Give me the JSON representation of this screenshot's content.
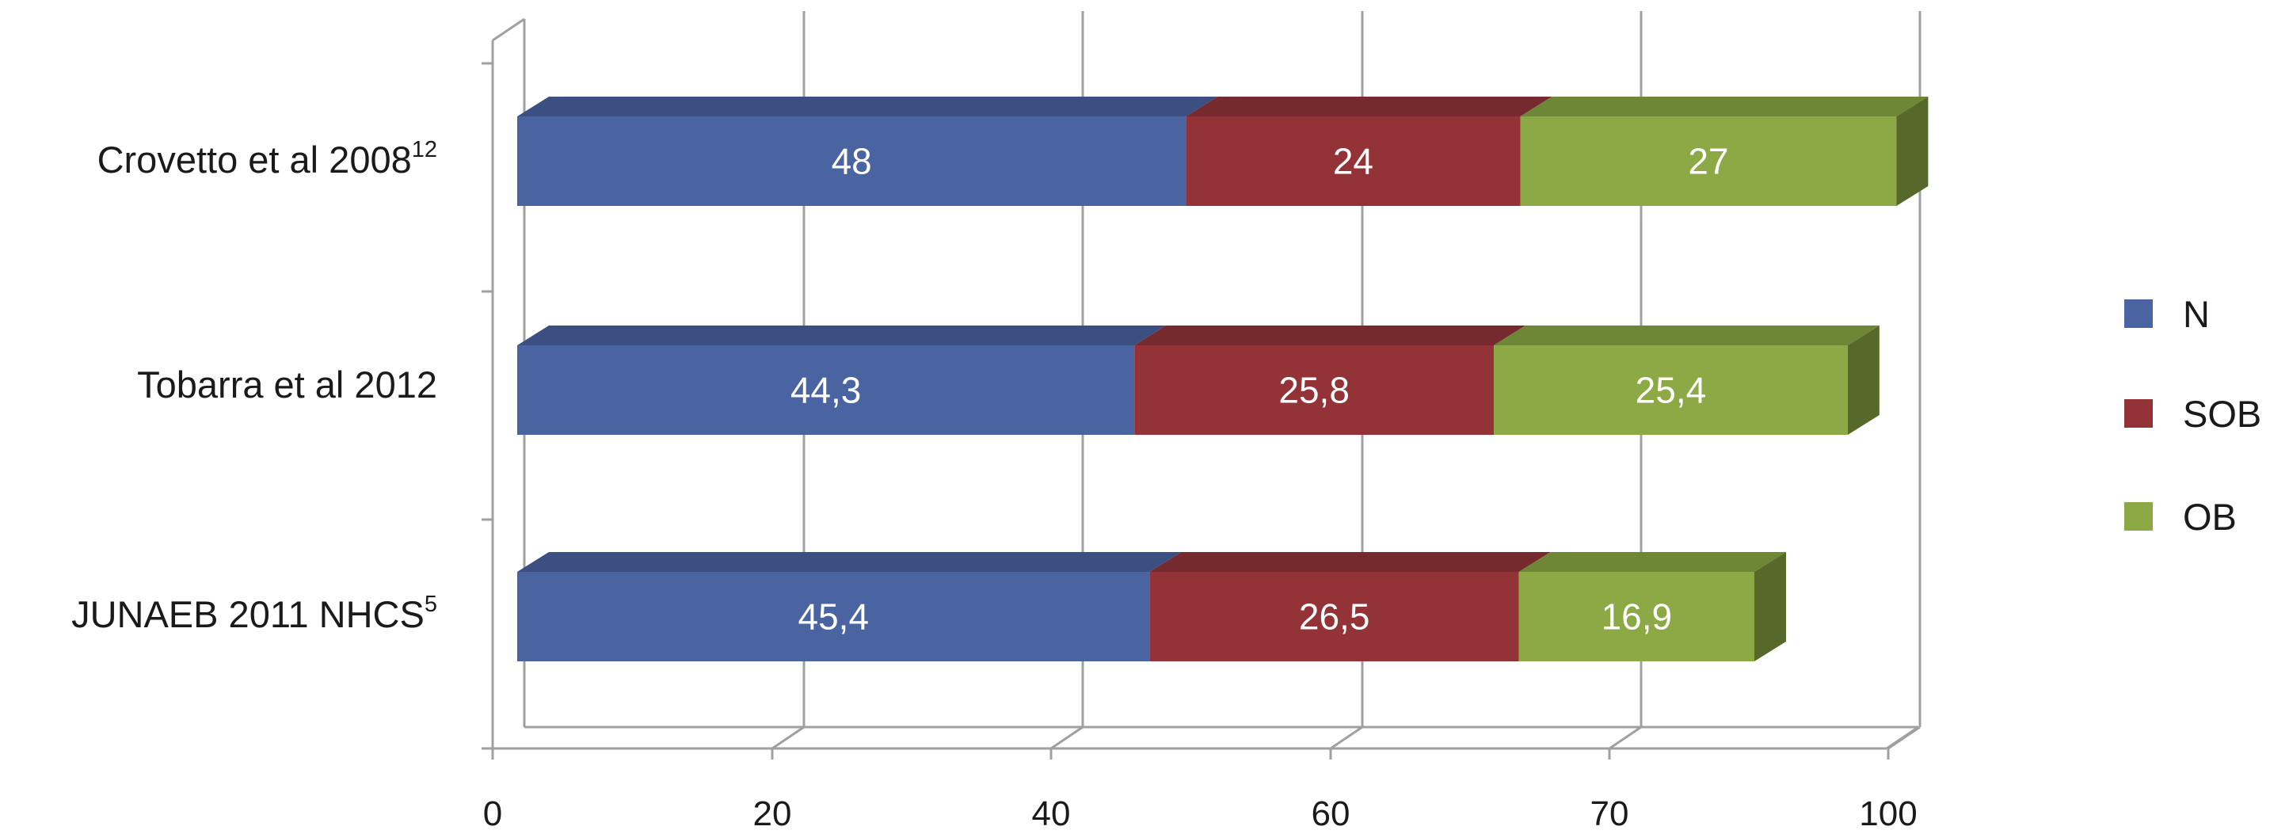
{
  "chart_data": {
    "type": "bar",
    "orientation": "horizontal",
    "stacked": true,
    "three_d": true,
    "categories": [
      {
        "label": "Crovetto et al 2008",
        "sup": "12"
      },
      {
        "label": "Tobarra et al 2012",
        "sup": ""
      },
      {
        "label": "JUNAEB 2011 NHCS",
        "sup": "5"
      }
    ],
    "series": [
      {
        "name": "N",
        "values": [
          48,
          44.3,
          45.4
        ],
        "labels": [
          "48",
          "44,3",
          "45,4"
        ],
        "color": "#4a64a2",
        "top_color": "#3c4f83",
        "side_color": "#334270"
      },
      {
        "name": "SOB",
        "values": [
          24,
          25.8,
          26.5
        ],
        "labels": [
          "24",
          "25,8",
          "26,5"
        ],
        "color": "#933237",
        "top_color": "#762a2e",
        "side_color": "#632226"
      },
      {
        "name": "OB",
        "values": [
          27,
          25.4,
          16.9
        ],
        "labels": [
          "27",
          "25,4",
          "16,9"
        ],
        "color": "#8ca946",
        "top_color": "#6e8736",
        "side_color": "#56692a"
      }
    ],
    "x_ticks": [
      "0",
      "20",
      "40",
      "60",
      "70",
      "100"
    ],
    "xlim": [
      0,
      100
    ],
    "grid": true,
    "legend": "right",
    "title": "",
    "xlabel": "",
    "ylabel": ""
  }
}
